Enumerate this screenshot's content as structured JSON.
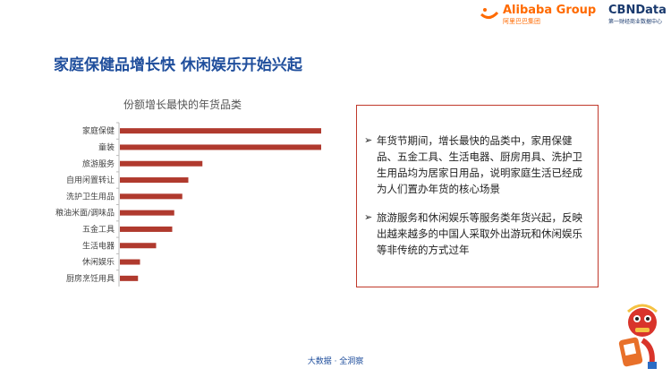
{
  "header": {
    "alibaba_logo": "Alibaba Group",
    "alibaba_sub": "阿里巴巴集团",
    "cbn_logo": "CBNData",
    "cbn_sub": "第一财经商业数据中心"
  },
  "page_title": "家庭保健品增长快  休闲娱乐开始兴起",
  "chart_data": {
    "type": "bar",
    "orientation": "horizontal",
    "title": "份额增长最快的年货品类",
    "categories": [
      "家庭保健",
      "童装",
      "旅游服务",
      "自用闲置转让",
      "洗护卫生用品",
      "粮油米面/调味品",
      "五金工具",
      "生活电器",
      "休闲娱乐",
      "厨房烹饪用具"
    ],
    "values": [
      100,
      100,
      41,
      34,
      31,
      27,
      26,
      18,
      10,
      9
    ],
    "xlim": [
      0,
      100
    ],
    "bar_color": "#b03a2e",
    "grid": false
  },
  "insights": [
    {
      "icon": "arrow-bullet-icon",
      "text": "年货节期间，增长最快的品类中，家用保健品、五金工具、生活电器、厨房用具、洗护卫生用品均为居家日用品，说明家庭生活已经成为人们置办年货的核心场景"
    },
    {
      "icon": "arrow-bullet-icon",
      "text": "旅游服务和休闲娱乐等服务类年货兴起，反映出越来越多的中国人采取外出游玩和休闲娱乐等非传统的方式过年"
    }
  ],
  "footer": "大数据 · 全洞察",
  "colors": {
    "title": "#1f4e9c",
    "accent": "#c0392b",
    "alibaba": "#ff6a00"
  }
}
